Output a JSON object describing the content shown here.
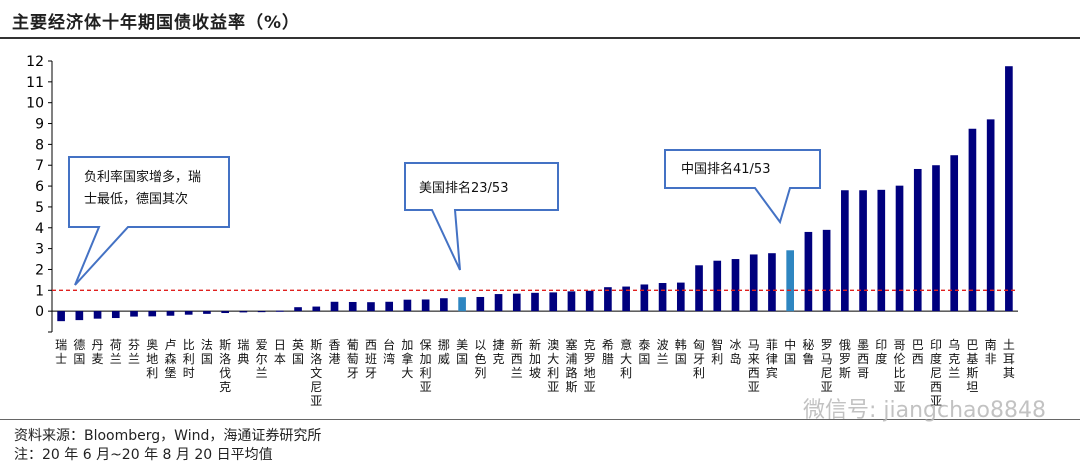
{
  "title": "主要经济体十年期国债收益率（%）",
  "source": "资料来源：Bloomberg，Wind，海通证券研究所",
  "footnote": "注：20 年 6 月~20 年 8 月 20 日平均值",
  "watermark": "微信号: jiangchao8848",
  "colors": {
    "bar": "#00007E",
    "highlight": "#2E86C1",
    "refline": "#E0201E",
    "callout": "#4472C4"
  },
  "chart_data": {
    "type": "bar",
    "title": "主要经济体十年期国债收益率（%）",
    "xlabel": "",
    "ylabel": "",
    "ylim": [
      -1,
      12
    ],
    "yticks": [
      -1,
      0,
      1,
      2,
      3,
      4,
      5,
      6,
      7,
      8,
      9,
      10,
      11,
      12
    ],
    "ytick_labels": [
      "",
      "0",
      "1",
      "2",
      "3",
      "4",
      "5",
      "6",
      "7",
      "8",
      "9",
      "10",
      "11",
      "12"
    ],
    "grid": false,
    "legend": "none",
    "reference_line": {
      "y": 1,
      "style": "dashed",
      "color": "#E0201E"
    },
    "highlighted": [
      "美国",
      "中国"
    ],
    "categories": [
      "瑞士",
      "德国",
      "丹麦",
      "荷兰",
      "芬兰",
      "奥地利",
      "卢森堡",
      "比利时",
      "法国",
      "斯洛伐克",
      "瑞典",
      "爱尔兰",
      "日本",
      "英国",
      "斯洛文尼亚",
      "香港",
      "葡萄牙",
      "西班牙",
      "台湾",
      "加拿大",
      "保加利亚",
      "挪威",
      "美国",
      "以色列",
      "捷克",
      "新西兰",
      "新加坡",
      "澳大利亚",
      "塞浦路斯",
      "克罗地亚",
      "希腊",
      "意大利",
      "泰国",
      "波兰",
      "韩国",
      "匈牙利",
      "智利",
      "冰岛",
      "马来西亚",
      "菲律宾",
      "中国",
      "秘鲁",
      "罗马尼亚",
      "俄罗斯",
      "墨西哥",
      "印度",
      "哥伦比亚",
      "巴西",
      "印度尼西亚",
      "乌克兰",
      "巴基斯坦",
      "南非",
      "土耳其"
    ],
    "values": [
      -0.48,
      -0.43,
      -0.36,
      -0.33,
      -0.26,
      -0.25,
      -0.22,
      -0.17,
      -0.13,
      -0.09,
      -0.06,
      -0.04,
      0.02,
      0.19,
      0.22,
      0.45,
      0.44,
      0.43,
      0.45,
      0.55,
      0.56,
      0.62,
      0.67,
      0.68,
      0.82,
      0.84,
      0.88,
      0.9,
      0.95,
      0.98,
      1.15,
      1.18,
      1.28,
      1.35,
      1.37,
      2.2,
      2.42,
      2.5,
      2.72,
      2.78,
      2.92,
      3.8,
      3.9,
      5.8,
      5.8,
      5.82,
      6.02,
      6.82,
      7.0,
      7.48,
      8.75,
      9.2,
      11.75
    ]
  },
  "callouts": [
    {
      "text": "负利率国家增多，瑞士最低，德国其次"
    },
    {
      "text": "美国排名23/53"
    },
    {
      "text": "中国排名41/53"
    }
  ]
}
